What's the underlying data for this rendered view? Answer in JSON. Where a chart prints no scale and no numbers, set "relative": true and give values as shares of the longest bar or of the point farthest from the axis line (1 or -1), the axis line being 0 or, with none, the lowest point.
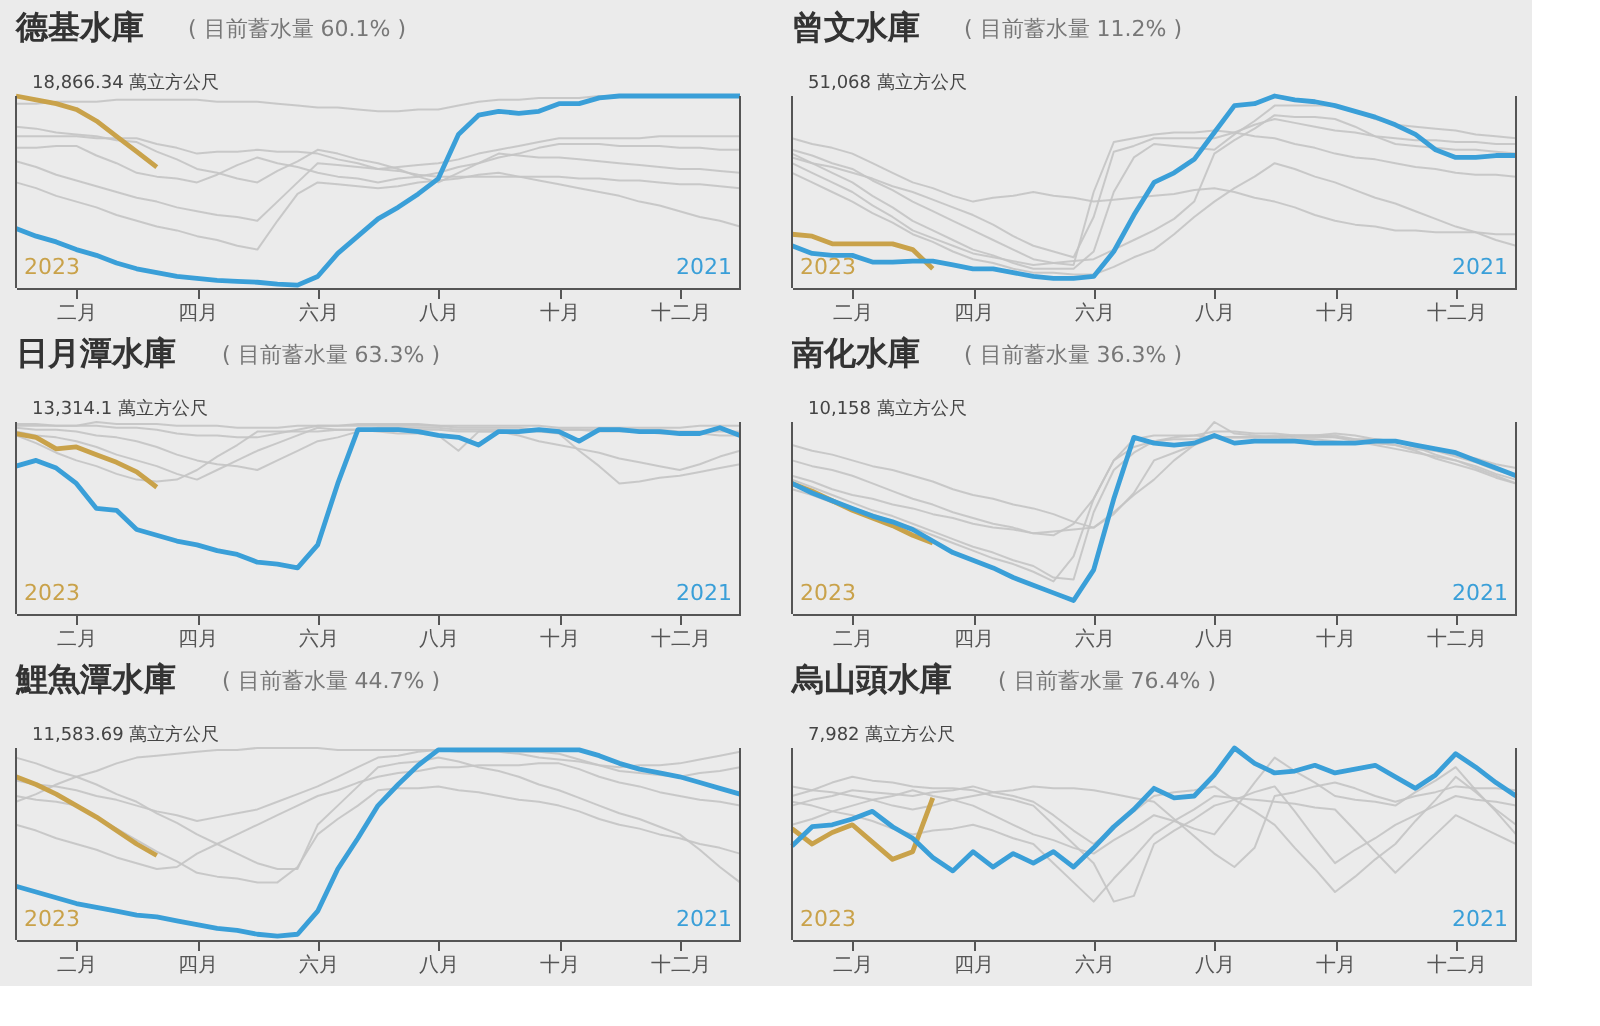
{
  "chart_data": [
    {
      "type": "line",
      "title": "德基水庫",
      "subtitle": "( 目前蓄水量 60.1% )",
      "annotations": [
        "18,866.34 萬立方公尺"
      ],
      "relative": true,
      "categories": [
        null,
        null,
        null,
        "二月",
        null,
        null,
        null,
        null,
        null,
        "四月",
        null,
        null,
        null,
        null,
        null,
        "六月",
        null,
        null,
        null,
        null,
        null,
        "八月",
        null,
        null,
        null,
        null,
        null,
        "十月",
        null,
        null,
        null,
        null,
        null,
        "十二月",
        null,
        null,
        null
      ],
      "series": [
        {
          "color": "#c4c4c4",
          "values": [
            0.96,
            0.96,
            0.97,
            0.97,
            0.97,
            0.98,
            0.98,
            0.98,
            0.98,
            0.98,
            0.97,
            0.97,
            0.97,
            0.96,
            0.95,
            0.94,
            0.94,
            0.93,
            0.92,
            0.92,
            0.93,
            0.93,
            0.95,
            0.97,
            0.98,
            0.98,
            0.99,
            0.99,
            0.99,
            1,
            1,
            1,
            1,
            1,
            1,
            1,
            1
          ]
        },
        {
          "color": "#c4c4c4",
          "values": [
            0.79,
            0.79,
            0.79,
            0.79,
            0.78,
            0.78,
            0.78,
            0.75,
            0.73,
            0.7,
            0.71,
            0.71,
            0.72,
            0.71,
            0.71,
            0.7,
            0.67,
            0.65,
            0.62,
            0.63,
            0.64,
            0.65,
            0.67,
            0.7,
            0.72,
            0.74,
            0.76,
            0.78,
            0.78,
            0.78,
            0.78,
            0.78,
            0.79,
            0.79,
            0.79,
            0.79,
            0.79
          ]
        },
        {
          "color": "#c4c4c4",
          "values": [
            0.73,
            0.73,
            0.74,
            0.74,
            0.69,
            0.65,
            0.6,
            0.58,
            0.57,
            0.55,
            0.59,
            0.64,
            0.68,
            0.65,
            0.63,
            0.6,
            0.58,
            0.57,
            0.55,
            0.57,
            0.58,
            0.6,
            0.63,
            0.65,
            0.68,
            0.7,
            0.73,
            0.75,
            0.75,
            0.75,
            0.74,
            0.74,
            0.74,
            0.73,
            0.73,
            0.72,
            0.72
          ]
        },
        {
          "color": "#c4c4c4",
          "values": [
            0.66,
            0.63,
            0.59,
            0.56,
            0.53,
            0.5,
            0.47,
            0.45,
            0.42,
            0.4,
            0.38,
            0.37,
            0.35,
            0.45,
            0.55,
            0.65,
            0.64,
            0.63,
            0.62,
            0.61,
            0.59,
            0.58,
            0.58,
            0.58,
            0.58,
            0.58,
            0.58,
            0.58,
            0.57,
            0.57,
            0.56,
            0.56,
            0.55,
            0.54,
            0.54,
            0.53,
            0.52
          ]
        },
        {
          "color": "#c4c4c4",
          "values": [
            0.55,
            0.52,
            0.48,
            0.45,
            0.42,
            0.38,
            0.35,
            0.32,
            0.3,
            0.27,
            0.25,
            0.22,
            0.2,
            0.35,
            0.49,
            0.55,
            0.54,
            0.53,
            0.52,
            0.53,
            0.55,
            0.56,
            0.57,
            0.59,
            0.6,
            0.58,
            0.56,
            0.54,
            0.52,
            0.5,
            0.48,
            0.45,
            0.43,
            0.4,
            0.37,
            0.35,
            0.32
          ]
        },
        {
          "color": "#c4c4c4",
          "values": [
            0.84,
            0.83,
            0.81,
            0.8,
            0.79,
            0.77,
            0.76,
            0.71,
            0.67,
            0.62,
            0.6,
            0.57,
            0.55,
            0.61,
            0.66,
            0.72,
            0.7,
            0.67,
            0.65,
            0.62,
            0.58,
            0.55,
            0.6,
            0.65,
            0.7,
            0.69,
            0.68,
            0.68,
            0.67,
            0.66,
            0.65,
            0.64,
            0.63,
            0.62,
            0.62,
            0.61,
            0.6
          ]
        },
        {
          "name": "2023",
          "color": "#c9a24a",
          "values": [
            1.0,
            0.98,
            0.96,
            0.93,
            0.87,
            0.79,
            0.71,
            0.63,
            null,
            null,
            null,
            null,
            null,
            null,
            null,
            null,
            null,
            null,
            null,
            null,
            null,
            null,
            null,
            null,
            null,
            null,
            null,
            null,
            null,
            null,
            null,
            null,
            null,
            null,
            null,
            null,
            null
          ]
        },
        {
          "name": "2021",
          "color": "#3a9fd8",
          "values": [
            0.31,
            0.27,
            0.24,
            0.2,
            0.17,
            0.13,
            0.1,
            0.08,
            0.06,
            0.05,
            0.04,
            0.035,
            0.03,
            0.02,
            0.015,
            0.06,
            0.18,
            0.27,
            0.36,
            0.42,
            0.49,
            0.57,
            0.8,
            0.9,
            0.92,
            0.91,
            0.92,
            0.96,
            0.96,
            0.99,
            1,
            1,
            1,
            1,
            1,
            1,
            1
          ]
        }
      ]
    },
    {
      "type": "line",
      "title": "曾文水庫",
      "subtitle": "( 目前蓄水量 11.2% )",
      "annotations": [
        "51,068 萬立方公尺"
      ],
      "relative": true,
      "categories": [
        null,
        null,
        null,
        "二月",
        null,
        null,
        null,
        null,
        null,
        "四月",
        null,
        null,
        null,
        null,
        null,
        "六月",
        null,
        null,
        null,
        null,
        null,
        "八月",
        null,
        null,
        null,
        null,
        null,
        "十月",
        null,
        null,
        null,
        null,
        null,
        "十二月",
        null,
        null,
        null
      ],
      "series": [
        {
          "color": "#c4c4c4",
          "values": [
            0.78,
            0.75,
            0.73,
            0.7,
            0.65,
            0.6,
            0.55,
            0.52,
            0.48,
            0.45,
            0.47,
            0.48,
            0.5,
            0.48,
            0.47,
            0.45,
            0.46,
            0.47,
            0.48,
            0.49,
            0.51,
            0.52,
            0.5,
            0.47,
            0.45,
            0.42,
            0.38,
            0.35,
            0.33,
            0.32,
            0.3,
            0.3,
            0.29,
            0.29,
            0.29,
            0.28,
            0.28
          ]
        },
        {
          "color": "#c4c4c4",
          "values": [
            0.72,
            0.69,
            0.65,
            0.62,
            0.56,
            0.51,
            0.45,
            0.4,
            0.35,
            0.3,
            0.25,
            0.2,
            0.15,
            0.13,
            0.12,
            0.5,
            0.76,
            0.78,
            0.8,
            0.81,
            0.81,
            0.82,
            0.81,
            0.79,
            0.78,
            0.75,
            0.73,
            0.7,
            0.68,
            0.67,
            0.65,
            0.63,
            0.62,
            0.6,
            0.59,
            0.59,
            0.58
          ]
        },
        {
          "color": "#c4c4c4",
          "values": [
            0.7,
            0.65,
            0.6,
            0.55,
            0.48,
            0.42,
            0.35,
            0.3,
            0.25,
            0.2,
            0.17,
            0.13,
            0.1,
            0.1,
            0.1,
            0.19,
            0.5,
            0.68,
            0.75,
            0.74,
            0.73,
            0.72,
            0.8,
            0.87,
            0.95,
            0.95,
            0.95,
            0.95,
            0.92,
            0.88,
            0.85,
            0.84,
            0.83,
            0.82,
            0.8,
            0.79,
            0.78
          ]
        },
        {
          "color": "#c4c4c4",
          "values": [
            0.65,
            0.6,
            0.55,
            0.5,
            0.43,
            0.37,
            0.3,
            0.26,
            0.22,
            0.18,
            0.16,
            0.14,
            0.12,
            0.13,
            0.14,
            0.15,
            0.2,
            0.25,
            0.3,
            0.36,
            0.45,
            0.7,
            0.77,
            0.83,
            0.9,
            0.89,
            0.89,
            0.88,
            0.84,
            0.79,
            0.75,
            0.74,
            0.73,
            0.72,
            0.72,
            0.71,
            0.7
          ]
        },
        {
          "color": "#c4c4c4",
          "values": [
            0.6,
            0.55,
            0.5,
            0.45,
            0.39,
            0.34,
            0.28,
            0.24,
            0.19,
            0.15,
            0.13,
            0.1,
            0.08,
            0.08,
            0.07,
            0.07,
            0.11,
            0.16,
            0.2,
            0.28,
            0.37,
            0.45,
            0.52,
            0.58,
            0.65,
            0.62,
            0.58,
            0.55,
            0.51,
            0.47,
            0.44,
            0.4,
            0.36,
            0.32,
            0.29,
            0.25,
            0.22
          ]
        },
        {
          "color": "#c4c4c4",
          "values": [
            0.68,
            0.65,
            0.63,
            0.6,
            0.57,
            0.53,
            0.5,
            0.46,
            0.42,
            0.38,
            0.33,
            0.27,
            0.22,
            0.19,
            0.16,
            0.37,
            0.71,
            0.74,
            0.78,
            0.78,
            0.78,
            0.78,
            0.81,
            0.85,
            0.88,
            0.86,
            0.84,
            0.82,
            0.81,
            0.79,
            0.78,
            0.77,
            0.77,
            0.76,
            0.76,
            0.75,
            0.75
          ]
        },
        {
          "name": "2023",
          "color": "#c9a24a",
          "values": [
            0.28,
            0.27,
            0.23,
            0.23,
            0.23,
            0.23,
            0.2,
            0.1,
            null,
            null,
            null,
            null,
            null,
            null,
            null,
            null,
            null,
            null,
            null,
            null,
            null,
            null,
            null,
            null,
            null,
            null,
            null,
            null,
            null,
            null,
            null,
            null,
            null,
            null,
            null,
            null,
            null
          ]
        },
        {
          "name": "2021",
          "color": "#3a9fd8",
          "values": [
            0.22,
            0.18,
            0.17,
            0.17,
            0.135,
            0.135,
            0.14,
            0.14,
            0.12,
            0.1,
            0.1,
            0.08,
            0.06,
            0.05,
            0.05,
            0.06,
            0.19,
            0.38,
            0.55,
            0.6,
            0.67,
            0.81,
            0.95,
            0.96,
            1.0,
            0.98,
            0.97,
            0.95,
            0.92,
            0.89,
            0.85,
            0.8,
            0.72,
            0.68,
            0.68,
            0.69,
            0.69
          ]
        }
      ]
    },
    {
      "type": "line",
      "title": "日月潭水庫",
      "subtitle": "( 目前蓄水量 63.3% )",
      "annotations": [
        "13,314.1 萬立方公尺"
      ],
      "relative": true,
      "categories": [
        null,
        null,
        null,
        "二月",
        null,
        null,
        null,
        null,
        null,
        "四月",
        null,
        null,
        null,
        null,
        null,
        "六月",
        null,
        null,
        null,
        null,
        null,
        "八月",
        null,
        null,
        null,
        null,
        null,
        "十月",
        null,
        null,
        null,
        null,
        null,
        "十二月",
        null,
        null,
        null
      ],
      "series": [
        {
          "color": "#c4c4c4",
          "values": [
            0.98,
            0.98,
            0.98,
            0.98,
            1.0,
            0.99,
            0.99,
            0.99,
            0.98,
            0.98,
            0.98,
            0.97,
            0.97,
            0.97,
            0.98,
            0.98,
            0.98,
            0.99,
            0.99,
            0.99,
            0.99,
            0.98,
            0.98,
            0.98,
            0.98,
            0.98,
            0.98,
            0.97,
            0.97,
            0.97,
            0.97,
            0.97,
            0.97,
            0.97,
            0.98,
            0.98,
            0.98
          ]
        },
        {
          "color": "#c4c4c4",
          "values": [
            0.95,
            0.93,
            0.92,
            0.9,
            0.87,
            0.83,
            0.8,
            0.77,
            0.73,
            0.7,
            0.75,
            0.8,
            0.85,
            0.89,
            0.93,
            0.97,
            0.96,
            0.96,
            0.95,
            0.94,
            0.94,
            0.93,
            0.85,
            0.95,
            0.95,
            0.95,
            0.96,
            0.96,
            0.96,
            0.96,
            0.96,
            0.96,
            0.96,
            0.95,
            0.95,
            0.95,
            0.95
          ]
        },
        {
          "color": "#c4c4c4",
          "values": [
            0.97,
            0.96,
            0.96,
            0.95,
            0.93,
            0.92,
            0.9,
            0.87,
            0.83,
            0.8,
            0.78,
            0.77,
            0.75,
            0.8,
            0.85,
            0.9,
            0.92,
            0.95,
            0.97,
            0.97,
            0.97,
            0.97,
            0.96,
            0.96,
            0.96,
            0.95,
            0.95,
            0.94,
            0.85,
            0.77,
            0.68,
            0.69,
            0.71,
            0.72,
            0.74,
            0.76,
            0.78
          ]
        },
        {
          "color": "#c4c4c4",
          "values": [
            0.93,
            0.89,
            0.84,
            0.8,
            0.77,
            0.73,
            0.7,
            0.69,
            0.7,
            0.75,
            0.82,
            0.88,
            0.95,
            0.95,
            0.95,
            0.95,
            0.96,
            0.96,
            0.96,
            0.96,
            0.96,
            0.96,
            0.95,
            0.95,
            0.95,
            0.93,
            0.9,
            0.88,
            0.86,
            0.84,
            0.81,
            0.79,
            0.77,
            0.75,
            0.78,
            0.82,
            0.85
          ]
        },
        {
          "color": "#c4c4c4",
          "values": [
            0.99,
            0.99,
            0.98,
            0.98,
            0.98,
            0.97,
            0.97,
            0.96,
            0.94,
            0.93,
            0.93,
            0.92,
            0.92,
            0.94,
            0.96,
            0.98,
            0.98,
            0.98,
            0.98,
            0.98,
            0.98,
            0.98,
            0.97,
            0.97,
            0.97,
            0.97,
            0.96,
            0.96,
            0.96,
            0.95,
            0.95,
            0.95,
            0.94,
            0.94,
            0.94,
            0.93,
            0.93
          ]
        },
        {
          "name": "2023",
          "color": "#c9a24a",
          "values": [
            0.94,
            0.92,
            0.86,
            0.87,
            0.83,
            0.79,
            0.74,
            0.66,
            null,
            null,
            null,
            null,
            null,
            null,
            null,
            null,
            null,
            null,
            null,
            null,
            null,
            null,
            null,
            null,
            null,
            null,
            null,
            null,
            null,
            null,
            null,
            null,
            null,
            null,
            null,
            null,
            null
          ]
        },
        {
          "name": "2021",
          "color": "#3a9fd8",
          "values": [
            0.77,
            0.8,
            0.76,
            0.68,
            0.55,
            0.54,
            0.44,
            0.41,
            0.38,
            0.36,
            0.33,
            0.31,
            0.27,
            0.26,
            0.24,
            0.36,
            0.68,
            0.96,
            0.96,
            0.96,
            0.95,
            0.93,
            0.92,
            0.88,
            0.95,
            0.95,
            0.96,
            0.95,
            0.9,
            0.96,
            0.96,
            0.95,
            0.95,
            0.94,
            0.94,
            0.97,
            0.93
          ]
        }
      ]
    },
    {
      "type": "line",
      "title": "南化水庫",
      "subtitle": "( 目前蓄水量 36.3% )",
      "annotations": [
        "10,158 萬立方公尺"
      ],
      "relative": true,
      "categories": [
        null,
        null,
        null,
        "二月",
        null,
        null,
        null,
        null,
        null,
        "四月",
        null,
        null,
        null,
        null,
        null,
        "六月",
        null,
        null,
        null,
        null,
        null,
        "八月",
        null,
        null,
        null,
        null,
        null,
        "十月",
        null,
        null,
        null,
        null,
        null,
        "十二月",
        null,
        null,
        null
      ],
      "series": [
        {
          "color": "#c4c4c4",
          "values": [
            0.8,
            0.77,
            0.75,
            0.72,
            0.68,
            0.64,
            0.6,
            0.57,
            0.53,
            0.5,
            0.47,
            0.45,
            0.42,
            0.41,
            0.47,
            0.6,
            0.8,
            0.91,
            0.93,
            0.93,
            0.93,
            0.92,
            0.92,
            0.92,
            0.92,
            0.93,
            0.93,
            0.94,
            0.93,
            0.91,
            0.9,
            0.87,
            0.85,
            0.82,
            0.79,
            0.75,
            0.72
          ]
        },
        {
          "color": "#c4c4c4",
          "values": [
            0.72,
            0.69,
            0.65,
            0.62,
            0.6,
            0.57,
            0.55,
            0.52,
            0.5,
            0.47,
            0.45,
            0.44,
            0.42,
            0.43,
            0.44,
            0.45,
            0.53,
            0.62,
            0.7,
            0.8,
            0.88,
            1.0,
            0.94,
            0.93,
            0.92,
            0.91,
            0.91,
            0.9,
            0.89,
            0.89,
            0.88,
            0.85,
            0.81,
            0.78,
            0.75,
            0.71,
            0.68
          ]
        },
        {
          "color": "#c4c4c4",
          "values": [
            0.65,
            0.62,
            0.58,
            0.55,
            0.52,
            0.48,
            0.45,
            0.41,
            0.37,
            0.33,
            0.29,
            0.26,
            0.22,
            0.17,
            0.3,
            0.6,
            0.8,
            0.87,
            0.9,
            0.91,
            0.91,
            0.92,
            0.92,
            0.92,
            0.93,
            0.92,
            0.92,
            0.92,
            0.91,
            0.91,
            0.9,
            0.87,
            0.83,
            0.8,
            0.77,
            0.73,
            0.7
          ]
        },
        {
          "color": "#c4c4c4",
          "values": [
            0.88,
            0.85,
            0.83,
            0.8,
            0.77,
            0.75,
            0.72,
            0.69,
            0.65,
            0.62,
            0.6,
            0.57,
            0.55,
            0.52,
            0.48,
            0.45,
            0.52,
            0.63,
            0.8,
            0.84,
            0.88,
            0.92,
            0.92,
            0.92,
            0.92,
            0.93,
            0.93,
            0.93,
            0.91,
            0.89,
            0.88,
            0.86,
            0.85,
            0.83,
            0.81,
            0.78,
            0.76
          ]
        },
        {
          "color": "#c4c4c4",
          "values": [
            0.7,
            0.66,
            0.62,
            0.58,
            0.54,
            0.51,
            0.47,
            0.43,
            0.39,
            0.35,
            0.32,
            0.28,
            0.25,
            0.19,
            0.18,
            0.53,
            0.75,
            0.84,
            0.9,
            0.92,
            0.93,
            0.95,
            0.95,
            0.94,
            0.94,
            0.93,
            0.93,
            0.92,
            0.9,
            0.88,
            0.86,
            0.84,
            0.82,
            0.8,
            0.76,
            0.72,
            0.68
          ]
        },
        {
          "name": "2023",
          "color": "#c9a24a",
          "values": [
            0.68,
            0.64,
            0.59,
            0.54,
            0.5,
            0.46,
            0.41,
            0.37,
            null,
            null,
            null,
            null,
            null,
            null,
            null,
            null,
            null,
            null,
            null,
            null,
            null,
            null,
            null,
            null,
            null,
            null,
            null,
            null,
            null,
            null,
            null,
            null,
            null,
            null,
            null,
            null,
            null
          ]
        },
        {
          "name": "2021",
          "color": "#3a9fd8",
          "values": [
            0.68,
            0.63,
            0.59,
            0.55,
            0.51,
            0.48,
            0.44,
            0.38,
            0.32,
            0.28,
            0.24,
            0.19,
            0.15,
            0.11,
            0.07,
            0.23,
            0.6,
            0.92,
            0.89,
            0.88,
            0.89,
            0.93,
            0.89,
            0.9,
            0.9,
            0.9,
            0.89,
            0.89,
            0.89,
            0.9,
            0.9,
            0.88,
            0.86,
            0.84,
            0.8,
            0.76,
            0.72
          ]
        }
      ]
    },
    {
      "type": "line",
      "title": "鯉魚潭水庫",
      "subtitle": "( 目前蓄水量 44.7% )",
      "annotations": [
        "11,583.69 萬立方公尺"
      ],
      "relative": true,
      "categories": [
        null,
        null,
        null,
        "二月",
        null,
        null,
        null,
        null,
        null,
        "四月",
        null,
        null,
        null,
        null,
        null,
        "六月",
        null,
        null,
        null,
        null,
        null,
        "八月",
        null,
        null,
        null,
        null,
        null,
        "十月",
        null,
        null,
        null,
        null,
        null,
        "十二月",
        null,
        null,
        null
      ],
      "series": [
        {
          "color": "#c4c4c4",
          "values": [
            0.83,
            0.81,
            0.8,
            0.78,
            0.75,
            0.73,
            0.7,
            0.67,
            0.65,
            0.62,
            0.64,
            0.66,
            0.68,
            0.72,
            0.76,
            0.8,
            0.85,
            0.9,
            0.95,
            0.96,
            0.98,
            0.99,
            0.99,
            0.99,
            0.99,
            0.98,
            0.98,
            0.97,
            0.94,
            0.91,
            0.88,
            0.87,
            0.86,
            0.85,
            0.87,
            0.88,
            0.9
          ]
        },
        {
          "color": "#c4c4c4",
          "values": [
            0.6,
            0.57,
            0.53,
            0.5,
            0.47,
            0.43,
            0.4,
            0.37,
            0.38,
            0.45,
            0.5,
            0.55,
            0.6,
            0.65,
            0.7,
            0.75,
            0.78,
            0.82,
            0.85,
            0.87,
            0.88,
            0.9,
            0.9,
            0.91,
            0.91,
            0.91,
            0.92,
            0.92,
            0.89,
            0.85,
            0.82,
            0.8,
            0.77,
            0.75,
            0.73,
            0.72,
            0.7
          ]
        },
        {
          "color": "#c4c4c4",
          "values": [
            0.75,
            0.73,
            0.72,
            0.7,
            0.64,
            0.58,
            0.52,
            0.46,
            0.41,
            0.35,
            0.33,
            0.32,
            0.3,
            0.3,
            0.38,
            0.55,
            0.63,
            0.7,
            0.78,
            0.79,
            0.79,
            0.8,
            0.78,
            0.77,
            0.75,
            0.73,
            0.72,
            0.7,
            0.67,
            0.63,
            0.6,
            0.58,
            0.55,
            0.53,
            0.5,
            0.48,
            0.45
          ]
        },
        {
          "color": "#c4c4c4",
          "values": [
            0.95,
            0.92,
            0.88,
            0.85,
            0.81,
            0.76,
            0.72,
            0.66,
            0.61,
            0.55,
            0.5,
            0.45,
            0.4,
            0.37,
            0.37,
            0.6,
            0.7,
            0.8,
            0.9,
            0.92,
            0.93,
            0.95,
            0.93,
            0.9,
            0.88,
            0.85,
            0.81,
            0.78,
            0.74,
            0.7,
            0.66,
            0.63,
            0.59,
            0.55,
            0.47,
            0.38,
            0.3
          ]
        },
        {
          "color": "#c4c4c4",
          "values": [
            0.72,
            0.76,
            0.81,
            0.85,
            0.88,
            0.92,
            0.95,
            0.96,
            0.97,
            0.98,
            0.99,
            0.99,
            1.0,
            1.0,
            1.0,
            1.0,
            0.99,
            0.99,
            0.99,
            0.99,
            0.99,
            0.99,
            0.98,
            0.98,
            0.98,
            0.97,
            0.95,
            0.94,
            0.93,
            0.91,
            0.9,
            0.91,
            0.91,
            0.92,
            0.94,
            0.96,
            0.98
          ]
        },
        {
          "name": "2023",
          "color": "#c9a24a",
          "values": [
            0.85,
            0.81,
            0.76,
            0.7,
            0.64,
            0.57,
            0.5,
            0.44,
            null,
            null,
            null,
            null,
            null,
            null,
            null,
            null,
            null,
            null,
            null,
            null,
            null,
            null,
            null,
            null,
            null,
            null,
            null,
            null,
            null,
            null,
            null,
            null,
            null,
            null,
            null,
            null,
            null
          ]
        },
        {
          "name": "2021",
          "color": "#3a9fd8",
          "values": [
            0.28,
            0.25,
            0.22,
            0.19,
            0.17,
            0.15,
            0.13,
            0.12,
            0.1,
            0.08,
            0.06,
            0.05,
            0.03,
            0.02,
            0.03,
            0.15,
            0.37,
            0.53,
            0.7,
            0.81,
            0.91,
            0.99,
            0.99,
            0.99,
            0.99,
            0.99,
            0.99,
            0.99,
            0.99,
            0.96,
            0.92,
            0.89,
            0.87,
            0.85,
            0.82,
            0.79,
            0.76
          ]
        }
      ]
    },
    {
      "type": "line",
      "title": "烏山頭水庫",
      "subtitle": "( 目前蓄水量 76.4% )",
      "annotations": [
        "7,982 萬立方公尺"
      ],
      "relative": true,
      "categories": [
        null,
        null,
        null,
        "二月",
        null,
        null,
        null,
        null,
        null,
        "四月",
        null,
        null,
        null,
        null,
        null,
        "六月",
        null,
        null,
        null,
        null,
        null,
        "八月",
        null,
        null,
        null,
        null,
        null,
        "十月",
        null,
        null,
        null,
        null,
        null,
        "十二月",
        null,
        null,
        null
      ],
      "series": [
        {
          "color": "#c4c4c4",
          "values": [
            0.75,
            0.78,
            0.82,
            0.85,
            0.83,
            0.82,
            0.8,
            0.79,
            0.79,
            0.78,
            0.75,
            0.73,
            0.7,
            0.6,
            0.5,
            0.4,
            0.2,
            0.23,
            0.5,
            0.57,
            0.63,
            0.7,
            0.73,
            0.77,
            0.8,
            0.67,
            0.53,
            0.4,
            0.47,
            0.53,
            0.6,
            0.65,
            0.7,
            0.75,
            0.73,
            0.72,
            0.7
          ]
        },
        {
          "color": "#c4c4c4",
          "values": [
            0.7,
            0.73,
            0.75,
            0.78,
            0.77,
            0.76,
            0.75,
            0.77,
            0.78,
            0.8,
            0.77,
            0.75,
            0.72,
            0.65,
            0.57,
            0.5,
            0.58,
            0.67,
            0.75,
            0.77,
            0.78,
            0.8,
            0.73,
            0.67,
            0.6,
            0.48,
            0.37,
            0.25,
            0.33,
            0.42,
            0.5,
            0.62,
            0.73,
            0.85,
            0.77,
            0.68,
            0.6
          ]
        },
        {
          "color": "#c4c4c4",
          "values": [
            0.6,
            0.63,
            0.67,
            0.7,
            0.73,
            0.75,
            0.78,
            0.75,
            0.73,
            0.7,
            0.65,
            0.6,
            0.55,
            0.52,
            0.48,
            0.45,
            0.52,
            0.58,
            0.65,
            0.62,
            0.58,
            0.55,
            0.68,
            0.82,
            0.95,
            0.88,
            0.82,
            0.75,
            0.73,
            0.72,
            0.7,
            0.77,
            0.83,
            0.9,
            0.78,
            0.67,
            0.55
          ]
        },
        {
          "color": "#c4c4c4",
          "values": [
            0.8,
            0.78,
            0.77,
            0.75,
            0.73,
            0.7,
            0.68,
            0.7,
            0.73,
            0.75,
            0.77,
            0.78,
            0.8,
            0.79,
            0.79,
            0.78,
            0.76,
            0.74,
            0.72,
            0.63,
            0.54,
            0.45,
            0.38,
            0.48,
            0.75,
            0.77,
            0.8,
            0.82,
            0.79,
            0.75,
            0.72,
            0.75,
            0.77,
            0.8,
            0.79,
            0.79,
            0.78
          ]
        },
        {
          "color": "#c4c4c4",
          "values": [
            0.72,
            0.7,
            0.67,
            0.65,
            0.62,
            0.58,
            0.55,
            0.57,
            0.58,
            0.6,
            0.57,
            0.53,
            0.5,
            0.4,
            0.3,
            0.2,
            0.32,
            0.43,
            0.55,
            0.62,
            0.68,
            0.75,
            0.74,
            0.73,
            0.72,
            0.71,
            0.69,
            0.68,
            0.57,
            0.46,
            0.35,
            0.45,
            0.55,
            0.65,
            0.6,
            0.55,
            0.5
          ]
        },
        {
          "name": "2023",
          "color": "#c9a24a",
          "values": [
            0.58,
            0.5,
            0.56,
            0.6,
            0.51,
            0.42,
            0.46,
            0.74,
            null,
            null,
            null,
            null,
            null,
            null,
            null,
            null,
            null,
            null,
            null,
            null,
            null,
            null,
            null,
            null,
            null,
            null,
            null,
            null,
            null,
            null,
            null,
            null,
            null,
            null,
            null,
            null,
            null
          ]
        },
        {
          "name": "2021",
          "color": "#3a9fd8",
          "values": [
            0.49,
            0.59,
            0.6,
            0.63,
            0.67,
            0.59,
            0.53,
            0.43,
            0.36,
            0.46,
            0.38,
            0.45,
            0.4,
            0.46,
            0.38,
            0.48,
            0.59,
            0.68,
            0.79,
            0.74,
            0.75,
            0.86,
            1.0,
            0.92,
            0.87,
            0.88,
            0.91,
            0.87,
            0.89,
            0.91,
            0.85,
            0.79,
            0.86,
            0.97,
            0.9,
            0.82,
            0.75
          ]
        }
      ]
    }
  ]
}
